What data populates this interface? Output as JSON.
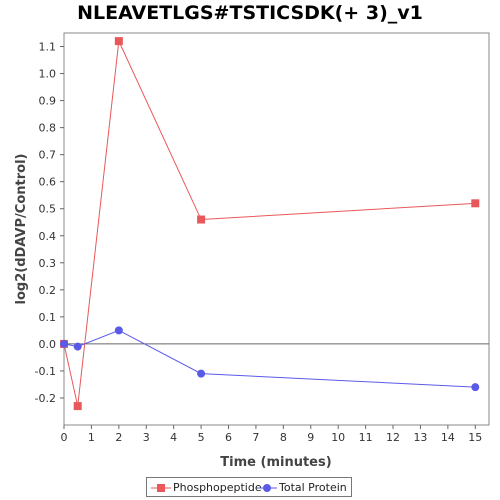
{
  "chart_data": {
    "type": "line",
    "title": "NLEAVETLGS#TSTICSDK(+ 3)_v1",
    "xlabel": "Time (minutes)",
    "ylabel": "log2(dDAVP/Control)",
    "xlim": [
      0,
      15.5
    ],
    "ylim": [
      -0.3,
      1.15
    ],
    "x_ticks": [
      0,
      1,
      2,
      3,
      4,
      5,
      6,
      7,
      8,
      9,
      10,
      11,
      12,
      13,
      14,
      15
    ],
    "y_ticks": [
      -0.2,
      -0.1,
      0.0,
      0.1,
      0.2,
      0.3,
      0.4,
      0.5,
      0.6,
      0.7,
      0.8,
      0.9,
      1.0,
      1.1
    ],
    "y_tick_labels": [
      "-0.2",
      "-0.1",
      "0.0",
      "0.1",
      "0.2",
      "0.3",
      "0.4",
      "0.5",
      "0.6",
      "0.7",
      "0.8",
      "0.9",
      "1.0",
      "1.1"
    ],
    "zero_line": 0.0,
    "legend_position": "bottom",
    "series": [
      {
        "name": "Phosphopeptide",
        "color": "#e8585a",
        "marker": "square",
        "x": [
          0,
          0.5,
          2,
          5,
          15
        ],
        "y": [
          0.0,
          -0.23,
          1.12,
          0.46,
          0.52
        ]
      },
      {
        "name": "Total Protein",
        "color": "#5a5ae8",
        "marker": "circle",
        "x": [
          0,
          0.5,
          2,
          5,
          15
        ],
        "y": [
          0.0,
          -0.01,
          0.05,
          -0.11,
          -0.16
        ]
      }
    ]
  }
}
